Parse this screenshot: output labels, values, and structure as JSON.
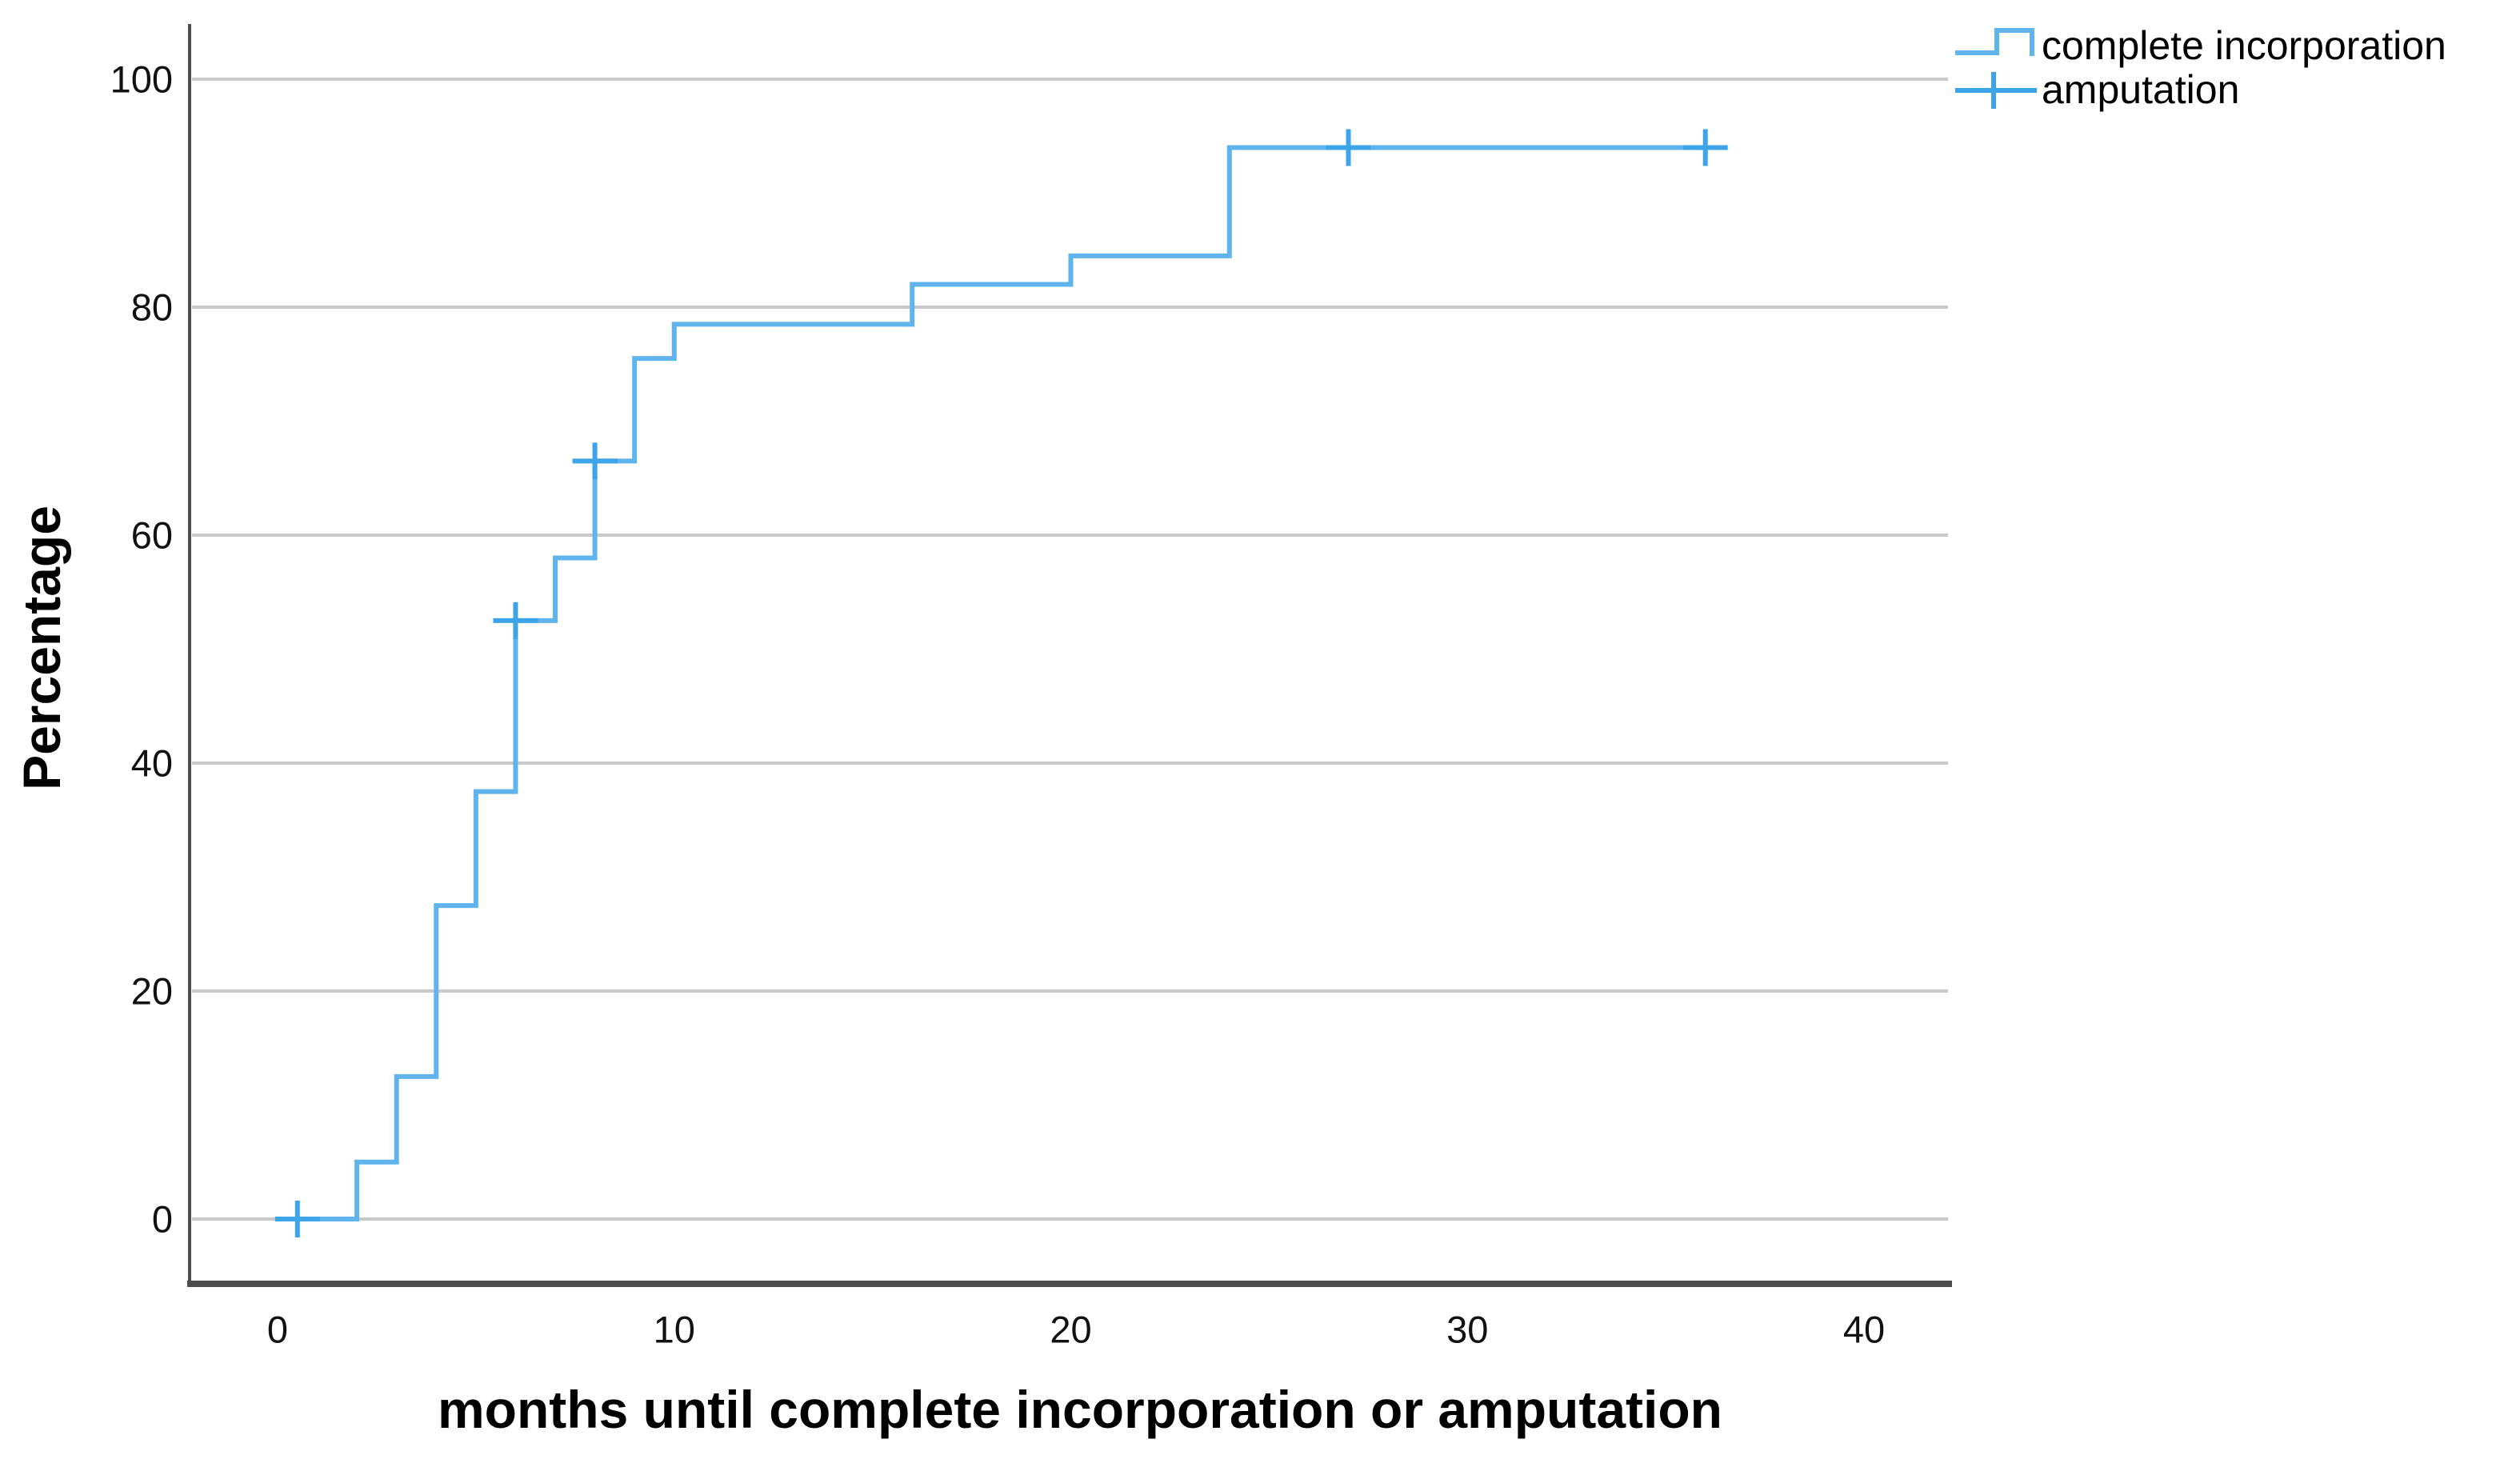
{
  "figure": {
    "background": "#ffffff",
    "x_axis": {
      "title": "months until complete incorporation or amputation",
      "ticks": [
        0,
        10,
        20,
        30,
        40
      ],
      "range": [
        0,
        40
      ]
    },
    "y_axis": {
      "title": "Percentage",
      "ticks": [
        0,
        20,
        40,
        60,
        80,
        100
      ],
      "range": [
        0,
        100
      ]
    },
    "legend": [
      {
        "label": "complete incorporation",
        "symbol": "step-line-icon"
      },
      {
        "label": "amputation",
        "symbol": "plus-marker-icon"
      }
    ],
    "colors": {
      "curve": "#5fb4ee",
      "censor": "#3ea4ea",
      "gridline": "#c9c9c9",
      "axis": "#4d4d4d",
      "text": "#000000"
    }
  },
  "chart_data": {
    "type": "line",
    "subtype": "kaplan-meier-cumulative-step",
    "title": "",
    "xlabel": "months until complete incorporation or amputation",
    "ylabel": "Percentage",
    "xlim": [
      0,
      40
    ],
    "ylim": [
      0,
      100
    ],
    "grid": "horizontal",
    "legend_position": "top-right",
    "series": [
      {
        "name": "complete incorporation",
        "start": {
          "month": 0,
          "percent": 0
        },
        "steps": [
          {
            "month": 2,
            "percent": 5
          },
          {
            "month": 3,
            "percent": 12.5
          },
          {
            "month": 4,
            "percent": 27.5
          },
          {
            "month": 5,
            "percent": 37.5
          },
          {
            "month": 6,
            "percent": 52.5
          },
          {
            "month": 7,
            "percent": 58
          },
          {
            "month": 8,
            "percent": 66.5
          },
          {
            "month": 9,
            "percent": 75.5
          },
          {
            "month": 10,
            "percent": 78.5
          },
          {
            "month": 16,
            "percent": 82
          },
          {
            "month": 20,
            "percent": 84.5
          },
          {
            "month": 24,
            "percent": 94
          }
        ],
        "end_month": 36
      },
      {
        "name": "amputation",
        "marker": "plus",
        "censored_points": [
          {
            "month": 0.5,
            "percent": 0
          },
          {
            "month": 6,
            "percent": 52.5
          },
          {
            "month": 8,
            "percent": 66.5
          },
          {
            "month": 27,
            "percent": 94
          },
          {
            "month": 36,
            "percent": 94
          }
        ]
      }
    ]
  }
}
